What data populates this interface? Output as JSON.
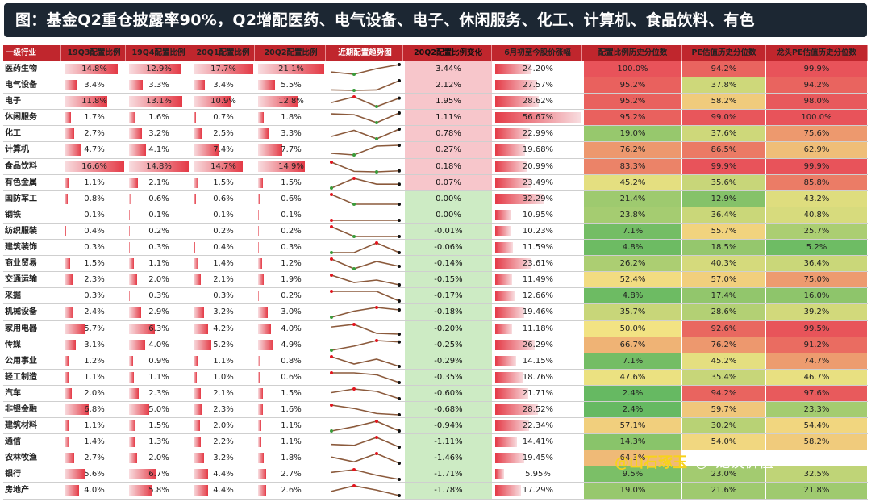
{
  "title": "图：基金Q2重仓披露率90%，Q2增配医药、电气设备、电子、休闲服务、化工、计算机、食品饮料、有色",
  "watermark": {
    "left": "@山石琢玉",
    "right": "龙谈价值"
  },
  "headers": [
    "一级行业",
    "19Q3配置比例",
    "19Q4配置比例",
    "20Q1配置比例",
    "20Q2配置比例",
    "近期配置趋势图",
    "20Q2配置比例变化",
    "6月初至今股价涨幅",
    "配置比例历史分位数",
    "PE估值历史分位数",
    "龙头PE估值历史分位数"
  ],
  "rows": [
    {
      "industry": "医药生物",
      "q19q3": "14.8%",
      "q19q4": "12.9%",
      "q20q1": "17.7%",
      "q20q2": "21.1%",
      "chg": "3.44%",
      "rise": "24.20%",
      "alloc_pct": "100.0%",
      "pe_pct": "94.2%",
      "lead_pct": "99.9%"
    },
    {
      "industry": "电气设备",
      "q19q3": "3.4%",
      "q19q4": "3.3%",
      "q20q1": "3.4%",
      "q20q2": "5.5%",
      "chg": "2.12%",
      "rise": "27.57%",
      "alloc_pct": "95.2%",
      "pe_pct": "37.8%",
      "lead_pct": "94.2%"
    },
    {
      "industry": "电子",
      "q19q3": "11.8%",
      "q19q4": "13.1%",
      "q20q1": "10.9%",
      "q20q2": "12.8%",
      "chg": "1.95%",
      "rise": "28.62%",
      "alloc_pct": "95.2%",
      "pe_pct": "58.2%",
      "lead_pct": "98.0%"
    },
    {
      "industry": "休闲服务",
      "q19q3": "1.7%",
      "q19q4": "1.6%",
      "q20q1": "0.7%",
      "q20q2": "1.8%",
      "chg": "1.11%",
      "rise": "56.67%",
      "alloc_pct": "95.2%",
      "pe_pct": "99.0%",
      "lead_pct": "100.0%"
    },
    {
      "industry": "化工",
      "q19q3": "2.7%",
      "q19q4": "3.2%",
      "q20q1": "2.5%",
      "q20q2": "3.3%",
      "chg": "0.78%",
      "rise": "22.99%",
      "alloc_pct": "19.0%",
      "pe_pct": "37.6%",
      "lead_pct": "75.6%"
    },
    {
      "industry": "计算机",
      "q19q3": "4.7%",
      "q19q4": "4.1%",
      "q20q1": "7.4%",
      "q20q2": "7.7%",
      "chg": "0.27%",
      "rise": "19.68%",
      "alloc_pct": "76.2%",
      "pe_pct": "86.5%",
      "lead_pct": "62.9%"
    },
    {
      "industry": "食品饮料",
      "q19q3": "16.6%",
      "q19q4": "14.8%",
      "q20q1": "14.7%",
      "q20q2": "14.9%",
      "chg": "0.18%",
      "rise": "20.99%",
      "alloc_pct": "83.3%",
      "pe_pct": "99.9%",
      "lead_pct": "99.9%"
    },
    {
      "industry": "有色金属",
      "q19q3": "1.1%",
      "q19q4": "2.1%",
      "q20q1": "1.5%",
      "q20q2": "1.5%",
      "chg": "0.07%",
      "rise": "23.49%",
      "alloc_pct": "45.2%",
      "pe_pct": "35.6%",
      "lead_pct": "85.8%"
    },
    {
      "industry": "国防军工",
      "q19q3": "0.8%",
      "q19q4": "0.6%",
      "q20q1": "0.6%",
      "q20q2": "0.6%",
      "chg": "0.00%",
      "rise": "32.29%",
      "alloc_pct": "21.4%",
      "pe_pct": "12.9%",
      "lead_pct": "43.2%"
    },
    {
      "industry": "钢铁",
      "q19q3": "0.1%",
      "q19q4": "0.1%",
      "q20q1": "0.1%",
      "q20q2": "0.1%",
      "chg": "0.00%",
      "rise": "10.95%",
      "alloc_pct": "23.8%",
      "pe_pct": "36.4%",
      "lead_pct": "40.8%"
    },
    {
      "industry": "纺织服装",
      "q19q3": "0.4%",
      "q19q4": "0.2%",
      "q20q1": "0.2%",
      "q20q2": "0.2%",
      "chg": "-0.01%",
      "rise": "10.23%",
      "alloc_pct": "7.1%",
      "pe_pct": "55.7%",
      "lead_pct": "25.7%"
    },
    {
      "industry": "建筑装饰",
      "q19q3": "0.3%",
      "q19q4": "0.3%",
      "q20q1": "0.4%",
      "q20q2": "0.3%",
      "chg": "-0.06%",
      "rise": "11.59%",
      "alloc_pct": "4.8%",
      "pe_pct": "18.5%",
      "lead_pct": "5.2%"
    },
    {
      "industry": "商业贸易",
      "q19q3": "1.5%",
      "q19q4": "1.1%",
      "q20q1": "1.4%",
      "q20q2": "1.2%",
      "chg": "-0.14%",
      "rise": "23.61%",
      "alloc_pct": "26.2%",
      "pe_pct": "40.3%",
      "lead_pct": "36.4%"
    },
    {
      "industry": "交通运输",
      "q19q3": "2.3%",
      "q19q4": "2.0%",
      "q20q1": "2.1%",
      "q20q2": "1.9%",
      "chg": "-0.15%",
      "rise": "11.49%",
      "alloc_pct": "52.4%",
      "pe_pct": "57.0%",
      "lead_pct": "75.0%"
    },
    {
      "industry": "采掘",
      "q19q3": "0.3%",
      "q19q4": "0.3%",
      "q20q1": "0.3%",
      "q20q2": "0.2%",
      "chg": "-0.17%",
      "rise": "12.66%",
      "alloc_pct": "4.8%",
      "pe_pct": "17.4%",
      "lead_pct": "16.0%"
    },
    {
      "industry": "机械设备",
      "q19q3": "2.4%",
      "q19q4": "2.9%",
      "q20q1": "3.2%",
      "q20q2": "3.0%",
      "chg": "-0.18%",
      "rise": "19.46%",
      "alloc_pct": "35.7%",
      "pe_pct": "28.6%",
      "lead_pct": "39.2%"
    },
    {
      "industry": "家用电器",
      "q19q3": "5.7%",
      "q19q4": "6.3%",
      "q20q1": "4.2%",
      "q20q2": "4.0%",
      "chg": "-0.20%",
      "rise": "11.18%",
      "alloc_pct": "50.0%",
      "pe_pct": "92.6%",
      "lead_pct": "99.5%"
    },
    {
      "industry": "传媒",
      "q19q3": "3.1%",
      "q19q4": "4.0%",
      "q20q1": "5.2%",
      "q20q2": "4.9%",
      "chg": "-0.25%",
      "rise": "26.29%",
      "alloc_pct": "66.7%",
      "pe_pct": "76.2%",
      "lead_pct": "91.2%"
    },
    {
      "industry": "公用事业",
      "q19q3": "1.2%",
      "q19q4": "0.9%",
      "q20q1": "1.1%",
      "q20q2": "0.8%",
      "chg": "-0.29%",
      "rise": "14.15%",
      "alloc_pct": "7.1%",
      "pe_pct": "45.2%",
      "lead_pct": "74.7%"
    },
    {
      "industry": "轻工制造",
      "q19q3": "1.1%",
      "q19q4": "1.1%",
      "q20q1": "1.0%",
      "q20q2": "0.6%",
      "chg": "-0.35%",
      "rise": "18.76%",
      "alloc_pct": "47.6%",
      "pe_pct": "35.4%",
      "lead_pct": "46.7%"
    },
    {
      "industry": "汽车",
      "q19q3": "2.0%",
      "q19q4": "2.3%",
      "q20q1": "2.1%",
      "q20q2": "1.5%",
      "chg": "-0.60%",
      "rise": "21.71%",
      "alloc_pct": "2.4%",
      "pe_pct": "94.2%",
      "lead_pct": "97.6%"
    },
    {
      "industry": "非银金融",
      "q19q3": "6.8%",
      "q19q4": "5.0%",
      "q20q1": "2.3%",
      "q20q2": "1.6%",
      "chg": "-0.68%",
      "rise": "28.52%",
      "alloc_pct": "2.4%",
      "pe_pct": "59.7%",
      "lead_pct": "23.3%"
    },
    {
      "industry": "建筑材料",
      "q19q3": "1.1%",
      "q19q4": "1.5%",
      "q20q1": "2.0%",
      "q20q2": "1.1%",
      "chg": "-0.94%",
      "rise": "22.34%",
      "alloc_pct": "57.1%",
      "pe_pct": "30.2%",
      "lead_pct": "54.4%"
    },
    {
      "industry": "通信",
      "q19q3": "1.4%",
      "q19q4": "1.3%",
      "q20q1": "2.2%",
      "q20q2": "1.1%",
      "chg": "-1.11%",
      "rise": "14.41%",
      "alloc_pct": "14.3%",
      "pe_pct": "54.0%",
      "lead_pct": "58.2%"
    },
    {
      "industry": "农林牧渔",
      "q19q3": "2.7%",
      "q19q4": "2.0%",
      "q20q1": "3.2%",
      "q20q2": "1.8%",
      "chg": "-1.46%",
      "rise": "19.45%",
      "alloc_pct": "64.3%",
      "pe_pct": "",
      "lead_pct": ""
    },
    {
      "industry": "银行",
      "q19q3": "5.6%",
      "q19q4": "6.7%",
      "q20q1": "4.4%",
      "q20q2": "2.7%",
      "chg": "-1.71%",
      "rise": "5.95%",
      "alloc_pct": "9.5%",
      "pe_pct": "23.0%",
      "lead_pct": "32.5%"
    },
    {
      "industry": "房地产",
      "q19q3": "4.0%",
      "q19q4": "5.8%",
      "q20q1": "4.4%",
      "q20q2": "2.6%",
      "chg": "-1.78%",
      "rise": "17.29%",
      "alloc_pct": "19.0%",
      "pe_pct": "21.6%",
      "lead_pct": "21.8%"
    }
  ],
  "colors": {
    "title_bg": "#1c2733",
    "header_bg": "#c0262d",
    "bar": "#e43a46",
    "increase_bg": "#f7c6cb",
    "decrease_bg": "#cdebc4",
    "heat_low": "#5fb760",
    "heat_mid": "#f2e383",
    "heat_high": "#e8535a",
    "spark_line": "#8b5a3c",
    "spark_high": "#e2151e",
    "spark_low": "#3a9b3a",
    "spark_last": "#111111"
  }
}
